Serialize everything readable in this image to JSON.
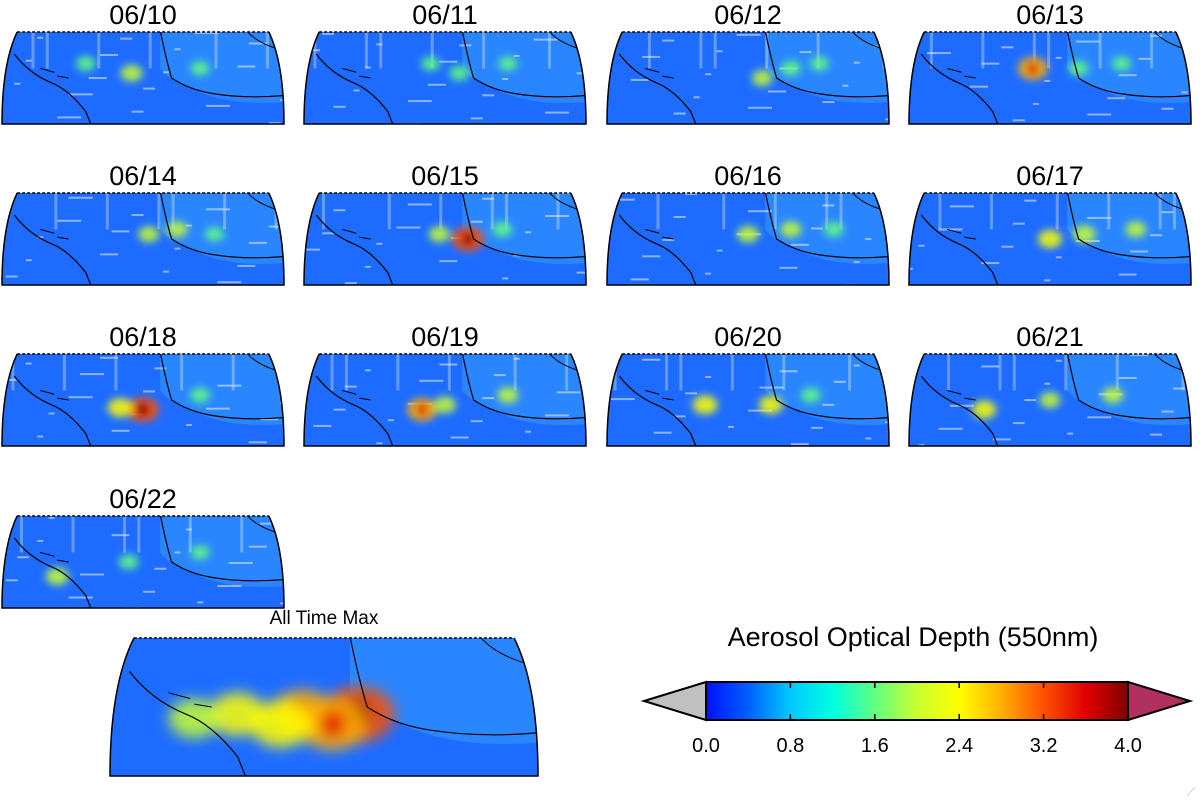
{
  "panels": [
    {
      "date": "06/10",
      "hotspots": [
        [
          0.3,
          0.35,
          0.35
        ],
        [
          0.46,
          0.45,
          0.45
        ],
        [
          0.7,
          0.4,
          0.3
        ]
      ]
    },
    {
      "date": "06/11",
      "hotspots": [
        [
          0.55,
          0.45,
          0.35
        ],
        [
          0.45,
          0.35,
          0.3
        ],
        [
          0.72,
          0.35,
          0.3
        ]
      ]
    },
    {
      "date": "06/12",
      "hotspots": [
        [
          0.55,
          0.5,
          0.4
        ],
        [
          0.65,
          0.4,
          0.35
        ],
        [
          0.75,
          0.35,
          0.3
        ]
      ]
    },
    {
      "date": "06/13",
      "hotspots": [
        [
          0.44,
          0.4,
          0.85
        ],
        [
          0.6,
          0.4,
          0.35
        ],
        [
          0.75,
          0.35,
          0.3
        ]
      ]
    },
    {
      "date": "06/14",
      "hotspots": [
        [
          0.52,
          0.45,
          0.4
        ],
        [
          0.62,
          0.4,
          0.4
        ],
        [
          0.75,
          0.45,
          0.3
        ]
      ]
    },
    {
      "date": "06/15",
      "hotspots": [
        [
          0.58,
          0.5,
          0.95
        ],
        [
          0.48,
          0.45,
          0.4
        ],
        [
          0.7,
          0.4,
          0.35
        ]
      ]
    },
    {
      "date": "06/16",
      "hotspots": [
        [
          0.5,
          0.45,
          0.45
        ],
        [
          0.65,
          0.4,
          0.4
        ],
        [
          0.8,
          0.4,
          0.35
        ]
      ]
    },
    {
      "date": "06/17",
      "hotspots": [
        [
          0.5,
          0.5,
          0.55
        ],
        [
          0.62,
          0.45,
          0.5
        ],
        [
          0.8,
          0.4,
          0.4
        ]
      ]
    },
    {
      "date": "06/18",
      "hotspots": [
        [
          0.5,
          0.6,
          0.95
        ],
        [
          0.42,
          0.58,
          0.6
        ],
        [
          0.7,
          0.45,
          0.35
        ]
      ]
    },
    {
      "date": "06/19",
      "hotspots": [
        [
          0.42,
          0.6,
          0.85
        ],
        [
          0.5,
          0.55,
          0.45
        ],
        [
          0.72,
          0.45,
          0.4
        ]
      ]
    },
    {
      "date": "06/20",
      "hotspots": [
        [
          0.35,
          0.55,
          0.6
        ],
        [
          0.58,
          0.55,
          0.55
        ],
        [
          0.72,
          0.45,
          0.35
        ]
      ]
    },
    {
      "date": "06/21",
      "hotspots": [
        [
          0.27,
          0.6,
          0.55
        ],
        [
          0.5,
          0.5,
          0.4
        ],
        [
          0.72,
          0.45,
          0.4
        ]
      ]
    },
    {
      "date": "06/22",
      "hotspots": [
        [
          0.2,
          0.65,
          0.5
        ],
        [
          0.45,
          0.5,
          0.35
        ],
        [
          0.7,
          0.4,
          0.3
        ]
      ]
    }
  ],
  "max_panel": {
    "title": "All Time Max",
    "hotspots": [
      [
        0.58,
        0.55,
        0.95
      ],
      [
        0.45,
        0.55,
        0.75
      ],
      [
        0.3,
        0.55,
        0.6
      ],
      [
        0.2,
        0.58,
        0.5
      ],
      [
        0.52,
        0.62,
        0.85
      ],
      [
        0.4,
        0.62,
        0.7
      ]
    ]
  },
  "colorbar": {
    "title": "Aerosol Optical Depth (550nm)",
    "ticks": [
      "0.0",
      "0.8",
      "1.6",
      "2.4",
      "3.2",
      "4.0"
    ],
    "stops": [
      "#0010ff",
      "#0060ff",
      "#00c8ff",
      "#00ffe0",
      "#60ff80",
      "#c8ff30",
      "#ffff00",
      "#ffb000",
      "#ff5000",
      "#e00000",
      "#800000"
    ],
    "under_color": "#c0c0c0",
    "over_color": "#b03060"
  },
  "colors": {
    "ocean": "#1e6cff",
    "land": "#2a86ff",
    "coast": "#000000",
    "missing": "#e8eef8"
  }
}
